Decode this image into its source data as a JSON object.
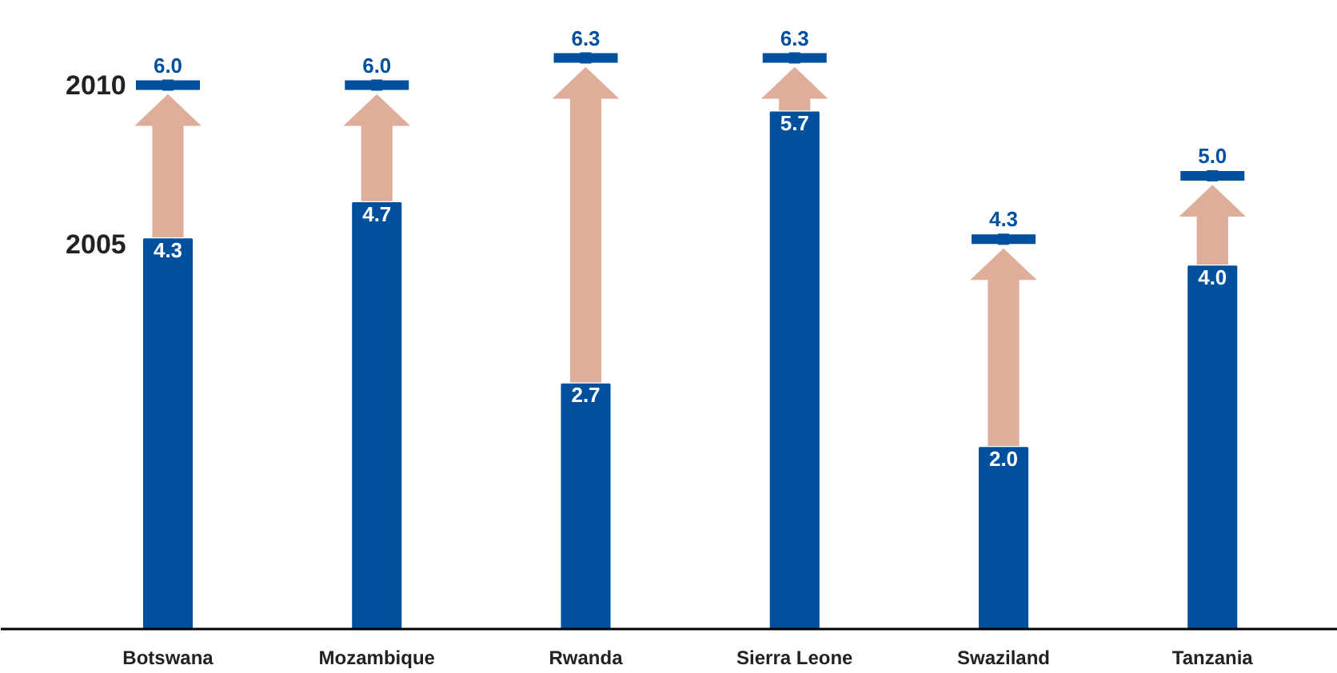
{
  "chart_data": {
    "type": "bar",
    "categories": [
      "Botswana",
      "Mozambique",
      "Rwanda",
      "Sierra Leone",
      "Swaziland",
      "Tanzania"
    ],
    "series": [
      {
        "name": "2005",
        "color": "#00509e",
        "values": [
          4.3,
          4.7,
          2.7,
          5.7,
          2.0,
          4.0
        ],
        "value_labels": [
          "4.3",
          "4.7",
          "2.7",
          "5.7",
          "2.0",
          "4.0"
        ]
      },
      {
        "name": "2010",
        "type": "scatter",
        "color": "#00509e",
        "values": [
          6.0,
          6.0,
          6.3,
          6.3,
          4.3,
          5.0
        ],
        "value_labels": [
          "6.0",
          "6.0",
          "6.3",
          "6.3",
          "4.3",
          "5.0"
        ]
      }
    ],
    "tick_labels": "x",
    "legend": "left"
  }
}
